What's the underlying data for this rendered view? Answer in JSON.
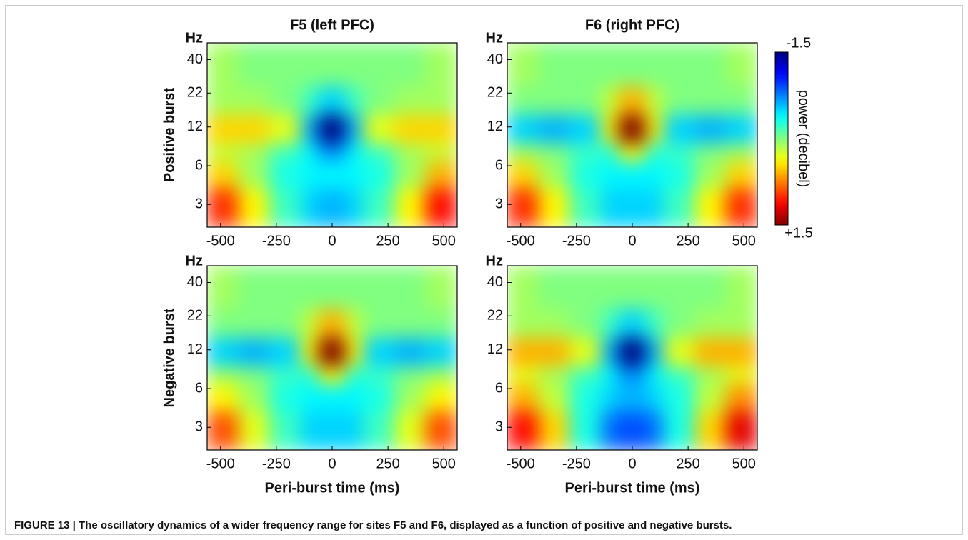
{
  "caption": "FIGURE 13 | The oscillatory dynamics of a wider frequency range for sites F5 and F6, displayed as a function of positive and negative bursts.",
  "colorbar": {
    "label": "power (decibel)",
    "clim": [
      -1.5,
      1.5
    ],
    "ticks": [
      -1.5,
      {
        "value": 1.5,
        "label": "+1.5"
      }
    ]
  },
  "chart_data": [
    {
      "type": "heatmap",
      "title": "F5 (left PFC)",
      "ylabel": "Positive burst",
      "yunit": "Hz",
      "xlim": [
        -560,
        560
      ],
      "xticks": [
        -500,
        -250,
        0,
        250,
        500
      ],
      "ylim": [
        2,
        54
      ],
      "yscale": "log",
      "yticks": [
        3,
        6,
        12,
        22,
        40
      ],
      "xbins": [
        -560,
        -420,
        -280,
        -140,
        -60,
        60,
        140,
        280,
        420,
        560
      ],
      "ybins": [
        2,
        4,
        6.5,
        9,
        15,
        25,
        54
      ],
      "values": [
        [
          1.0,
          0.4,
          -0.2,
          -0.5,
          -0.6,
          -0.5,
          -0.2,
          0.4,
          1.1
        ],
        [
          0.5,
          0.1,
          -0.3,
          -0.4,
          -0.4,
          -0.4,
          -0.3,
          0.1,
          0.6
        ],
        [
          0.2,
          0.1,
          -0.2,
          -0.4,
          -0.7,
          -0.4,
          -0.2,
          0.1,
          0.2
        ],
        [
          0.5,
          0.5,
          0.3,
          -0.6,
          -1.5,
          -0.6,
          0.3,
          0.5,
          0.5
        ],
        [
          0.1,
          0.1,
          0,
          -0.2,
          -0.5,
          -0.2,
          0,
          0.1,
          0.1
        ],
        [
          0.1,
          0,
          0,
          0,
          0,
          0,
          0,
          0,
          0.1
        ]
      ]
    },
    {
      "type": "heatmap",
      "title": "F6 (right PFC)",
      "yunit": "Hz",
      "xlim": [
        -560,
        560
      ],
      "xticks": [
        -500,
        -250,
        0,
        250,
        500
      ],
      "ylim": [
        2,
        54
      ],
      "yscale": "log",
      "yticks": [
        3,
        6,
        12,
        22,
        40
      ],
      "xbins": [
        -560,
        -420,
        -280,
        -140,
        -60,
        60,
        140,
        280,
        420,
        560
      ],
      "ybins": [
        2,
        4,
        6.5,
        9,
        15,
        25,
        54
      ],
      "values": [
        [
          1.0,
          0.4,
          -0.2,
          -0.5,
          -0.5,
          -0.5,
          -0.2,
          0.4,
          1.0
        ],
        [
          0.5,
          0.1,
          -0.3,
          -0.4,
          -0.4,
          -0.4,
          -0.3,
          0.1,
          0.5
        ],
        [
          0.1,
          0,
          -0.2,
          -0.3,
          0.4,
          -0.3,
          -0.2,
          0,
          0.1
        ],
        [
          -0.5,
          -0.6,
          -0.5,
          0.4,
          1.5,
          0.4,
          -0.5,
          -0.6,
          -0.5
        ],
        [
          0,
          0,
          0,
          0.2,
          0.6,
          0.2,
          0,
          0,
          0
        ],
        [
          0.1,
          0,
          0,
          0,
          0,
          0,
          0,
          0,
          0.1
        ]
      ]
    },
    {
      "type": "heatmap",
      "ylabel": "Negative burst",
      "xlabel": "Peri-burst time (ms)",
      "yunit": "Hz",
      "xlim": [
        -560,
        560
      ],
      "xticks": [
        -500,
        -250,
        0,
        250,
        500
      ],
      "ylim": [
        2,
        54
      ],
      "yscale": "log",
      "yticks": [
        3,
        6,
        12,
        22,
        40
      ],
      "xbins": [
        -560,
        -420,
        -280,
        -140,
        -60,
        60,
        140,
        280,
        420,
        560
      ],
      "ybins": [
        2,
        4,
        6.5,
        9,
        15,
        25,
        54
      ],
      "values": [
        [
          0.9,
          0.3,
          -0.2,
          -0.5,
          -0.5,
          -0.5,
          -0.2,
          0.3,
          0.9
        ],
        [
          0.4,
          0.1,
          -0.3,
          -0.4,
          -0.4,
          -0.4,
          -0.3,
          0.1,
          0.4
        ],
        [
          0.1,
          0,
          -0.2,
          -0.3,
          0.4,
          -0.3,
          -0.2,
          0,
          0.1
        ],
        [
          -0.5,
          -0.6,
          -0.5,
          0.4,
          1.5,
          0.4,
          -0.5,
          -0.6,
          -0.5
        ],
        [
          0,
          0,
          0,
          0.2,
          0.6,
          0.2,
          0,
          0,
          0
        ],
        [
          0.1,
          0,
          0,
          0,
          0,
          0,
          0,
          0,
          0.1
        ]
      ]
    },
    {
      "type": "heatmap",
      "xlabel": "Peri-burst time (ms)",
      "yunit": "Hz",
      "xlim": [
        -560,
        560
      ],
      "xticks": [
        -500,
        -250,
        0,
        250,
        500
      ],
      "ylim": [
        2,
        54
      ],
      "yscale": "log",
      "yticks": [
        3,
        6,
        12,
        22,
        40
      ],
      "xbins": [
        -560,
        -420,
        -280,
        -140,
        -60,
        60,
        140,
        280,
        420,
        560
      ],
      "ybins": [
        2,
        4,
        6.5,
        9,
        15,
        25,
        54
      ],
      "values": [
        [
          1.1,
          0.5,
          -0.3,
          -0.8,
          -0.9,
          -0.8,
          -0.3,
          0.5,
          1.2
        ],
        [
          0.6,
          0.2,
          -0.3,
          -0.5,
          -0.6,
          -0.5,
          -0.3,
          0.2,
          0.7
        ],
        [
          0.3,
          0.1,
          -0.2,
          -0.4,
          -0.7,
          -0.4,
          -0.2,
          0.1,
          0.3
        ],
        [
          0.6,
          0.6,
          0.3,
          -0.6,
          -1.5,
          -0.6,
          0.3,
          0.6,
          0.6
        ],
        [
          0.1,
          0.1,
          0,
          -0.2,
          -0.5,
          -0.2,
          0,
          0.1,
          0.1
        ],
        [
          0.1,
          0,
          0,
          0,
          0,
          0,
          0,
          0,
          0.1
        ]
      ]
    }
  ]
}
